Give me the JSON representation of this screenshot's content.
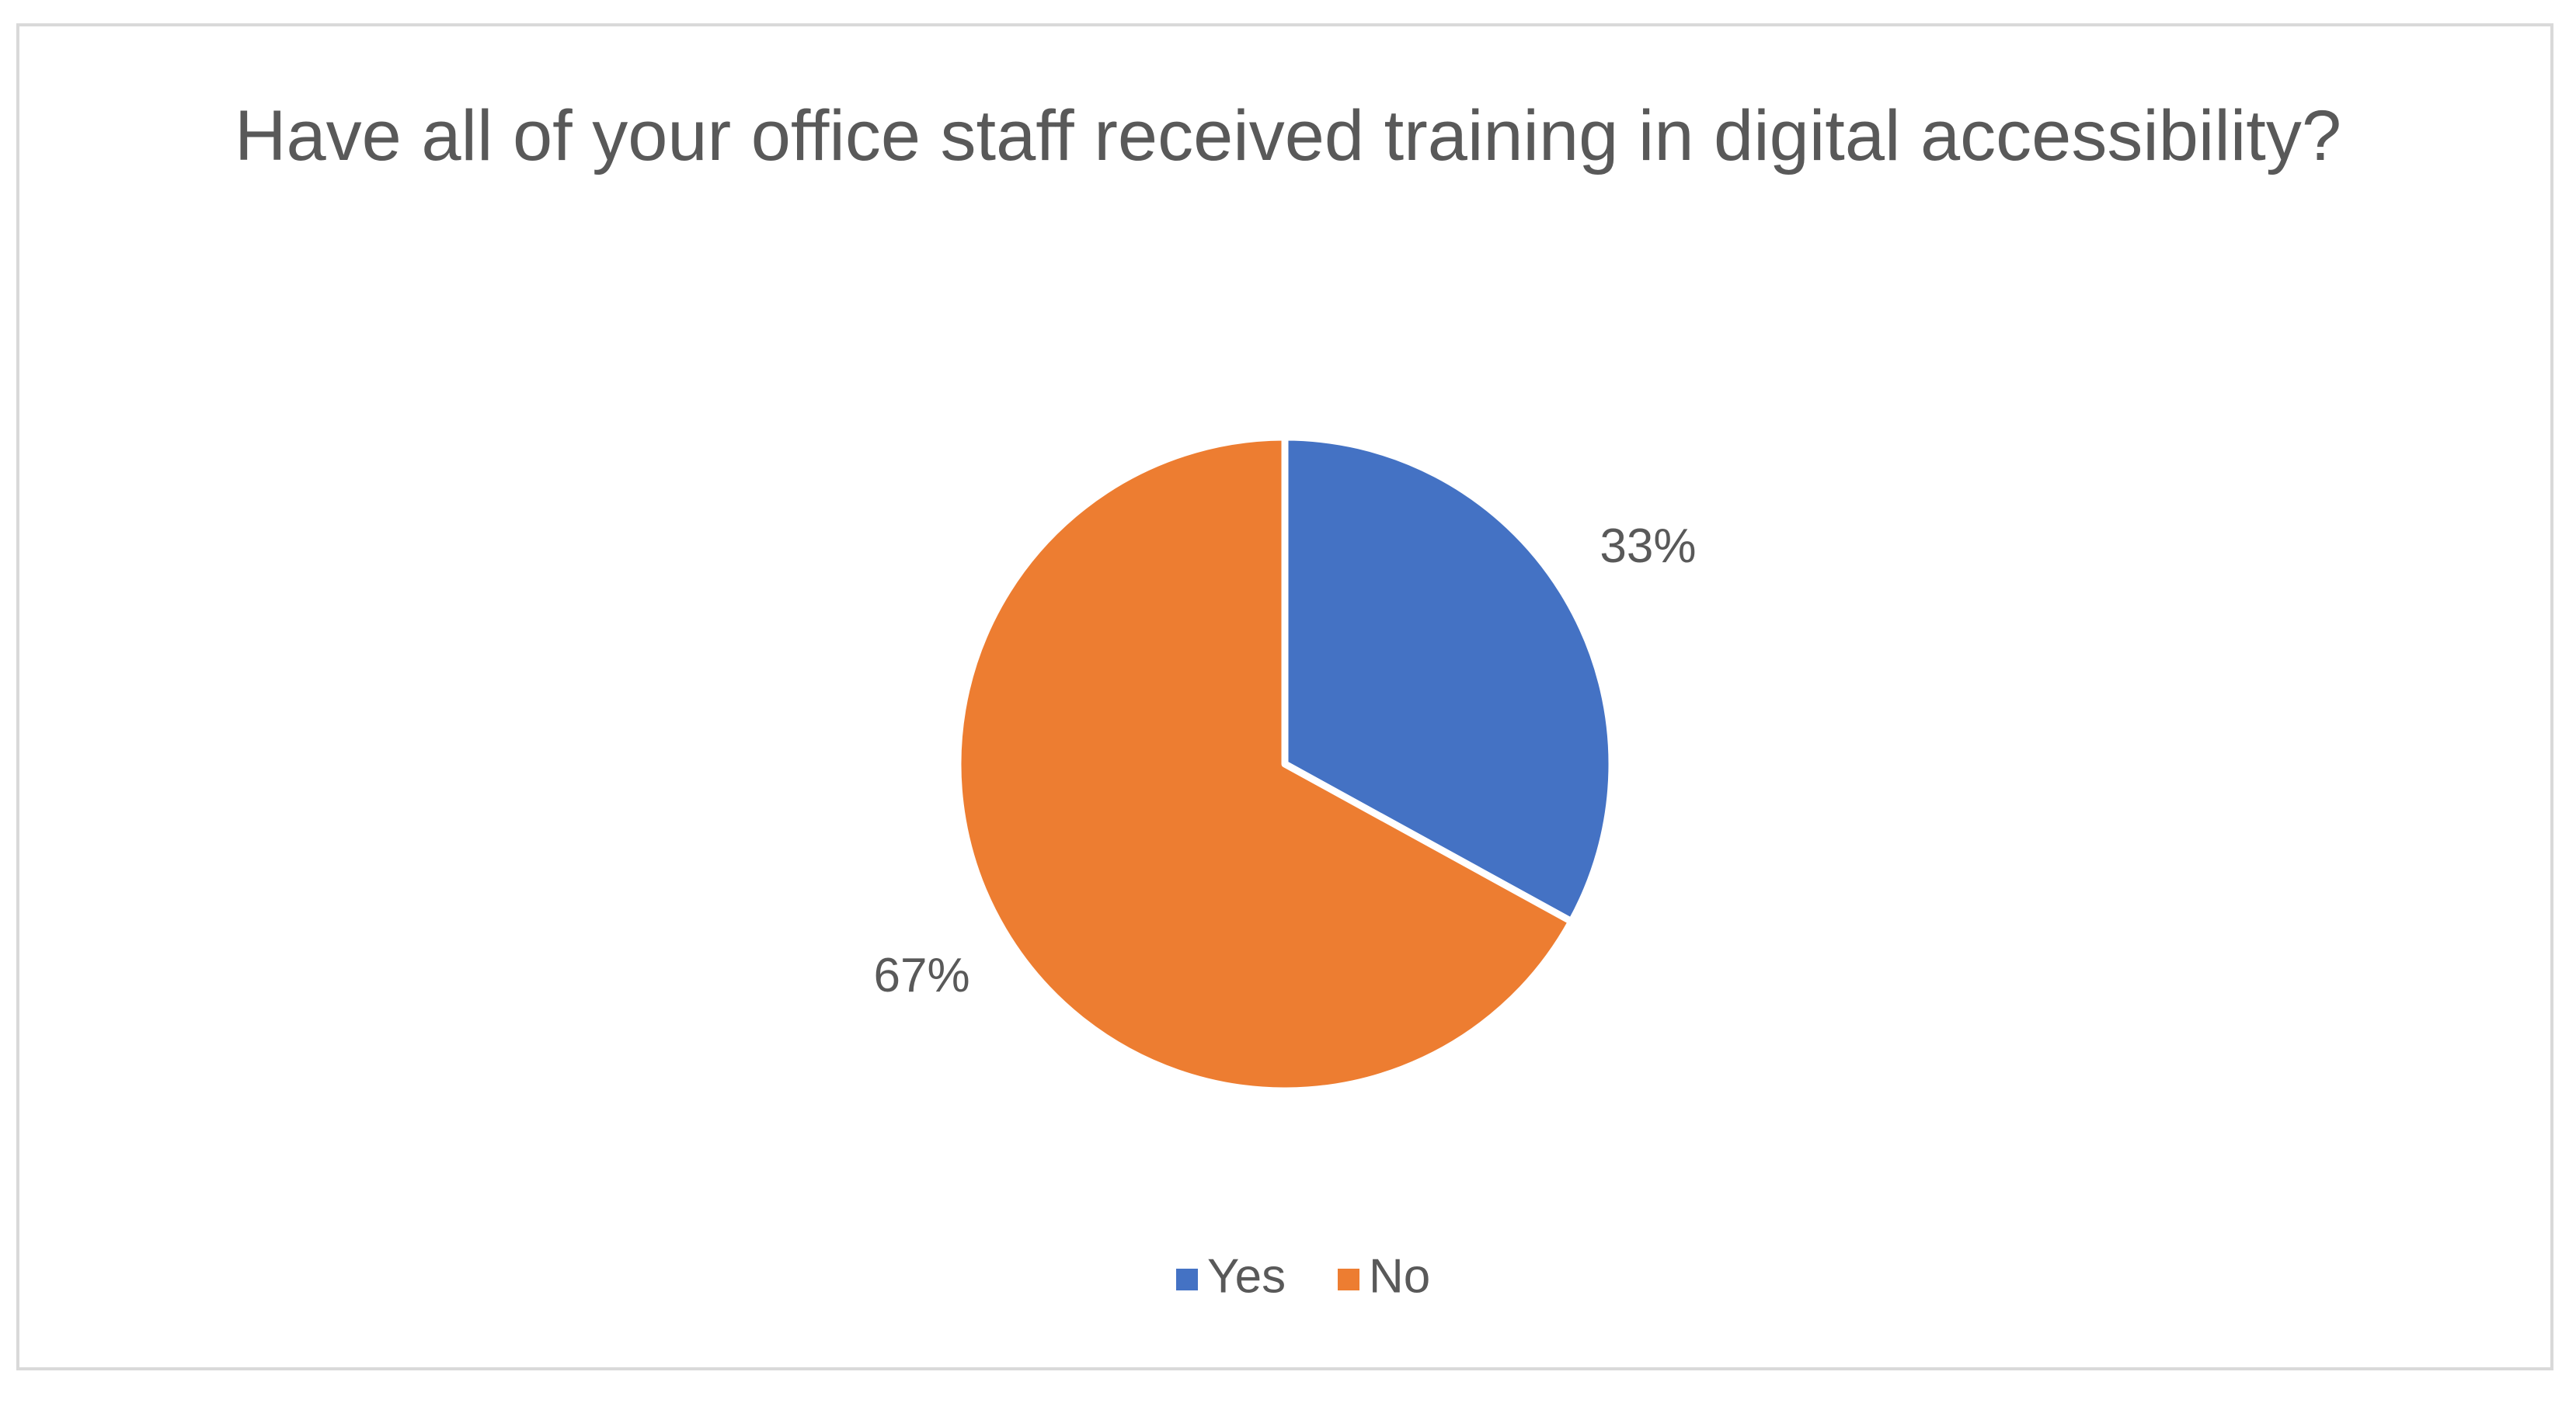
{
  "chart_data": {
    "type": "pie",
    "title": "Have all of your office staff received training in digital accessibility?",
    "categories": [
      "Yes",
      "No"
    ],
    "values": [
      33,
      67
    ],
    "value_labels": [
      "33%",
      "67%"
    ],
    "colors": [
      "#4472c4",
      "#ed7d31"
    ],
    "legend": "bottom"
  }
}
